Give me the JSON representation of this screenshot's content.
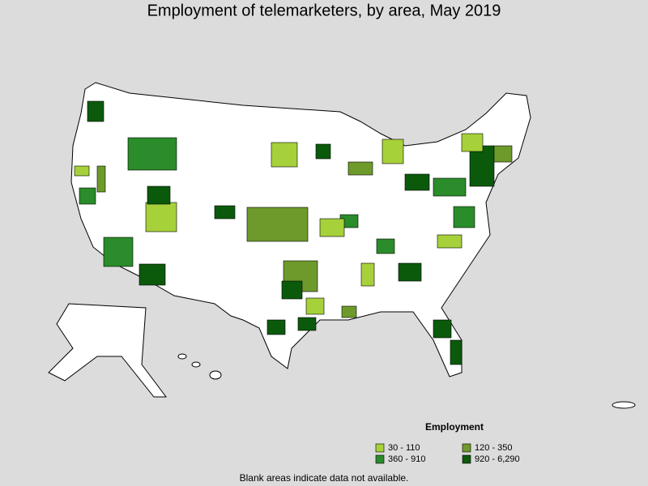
{
  "title": "Employment of telemarketers, by area, May 2019",
  "legend": {
    "title": "Employment",
    "items": [
      {
        "label": "30 - 110",
        "color": "#a6d13a"
      },
      {
        "label": "120 - 350",
        "color": "#6e9a2c"
      },
      {
        "label": "360 - 910",
        "color": "#2a8c2a"
      },
      {
        "label": "920 - 6,290",
        "color": "#0b5a0b"
      }
    ]
  },
  "footnote": "Blank areas indicate data not available."
}
